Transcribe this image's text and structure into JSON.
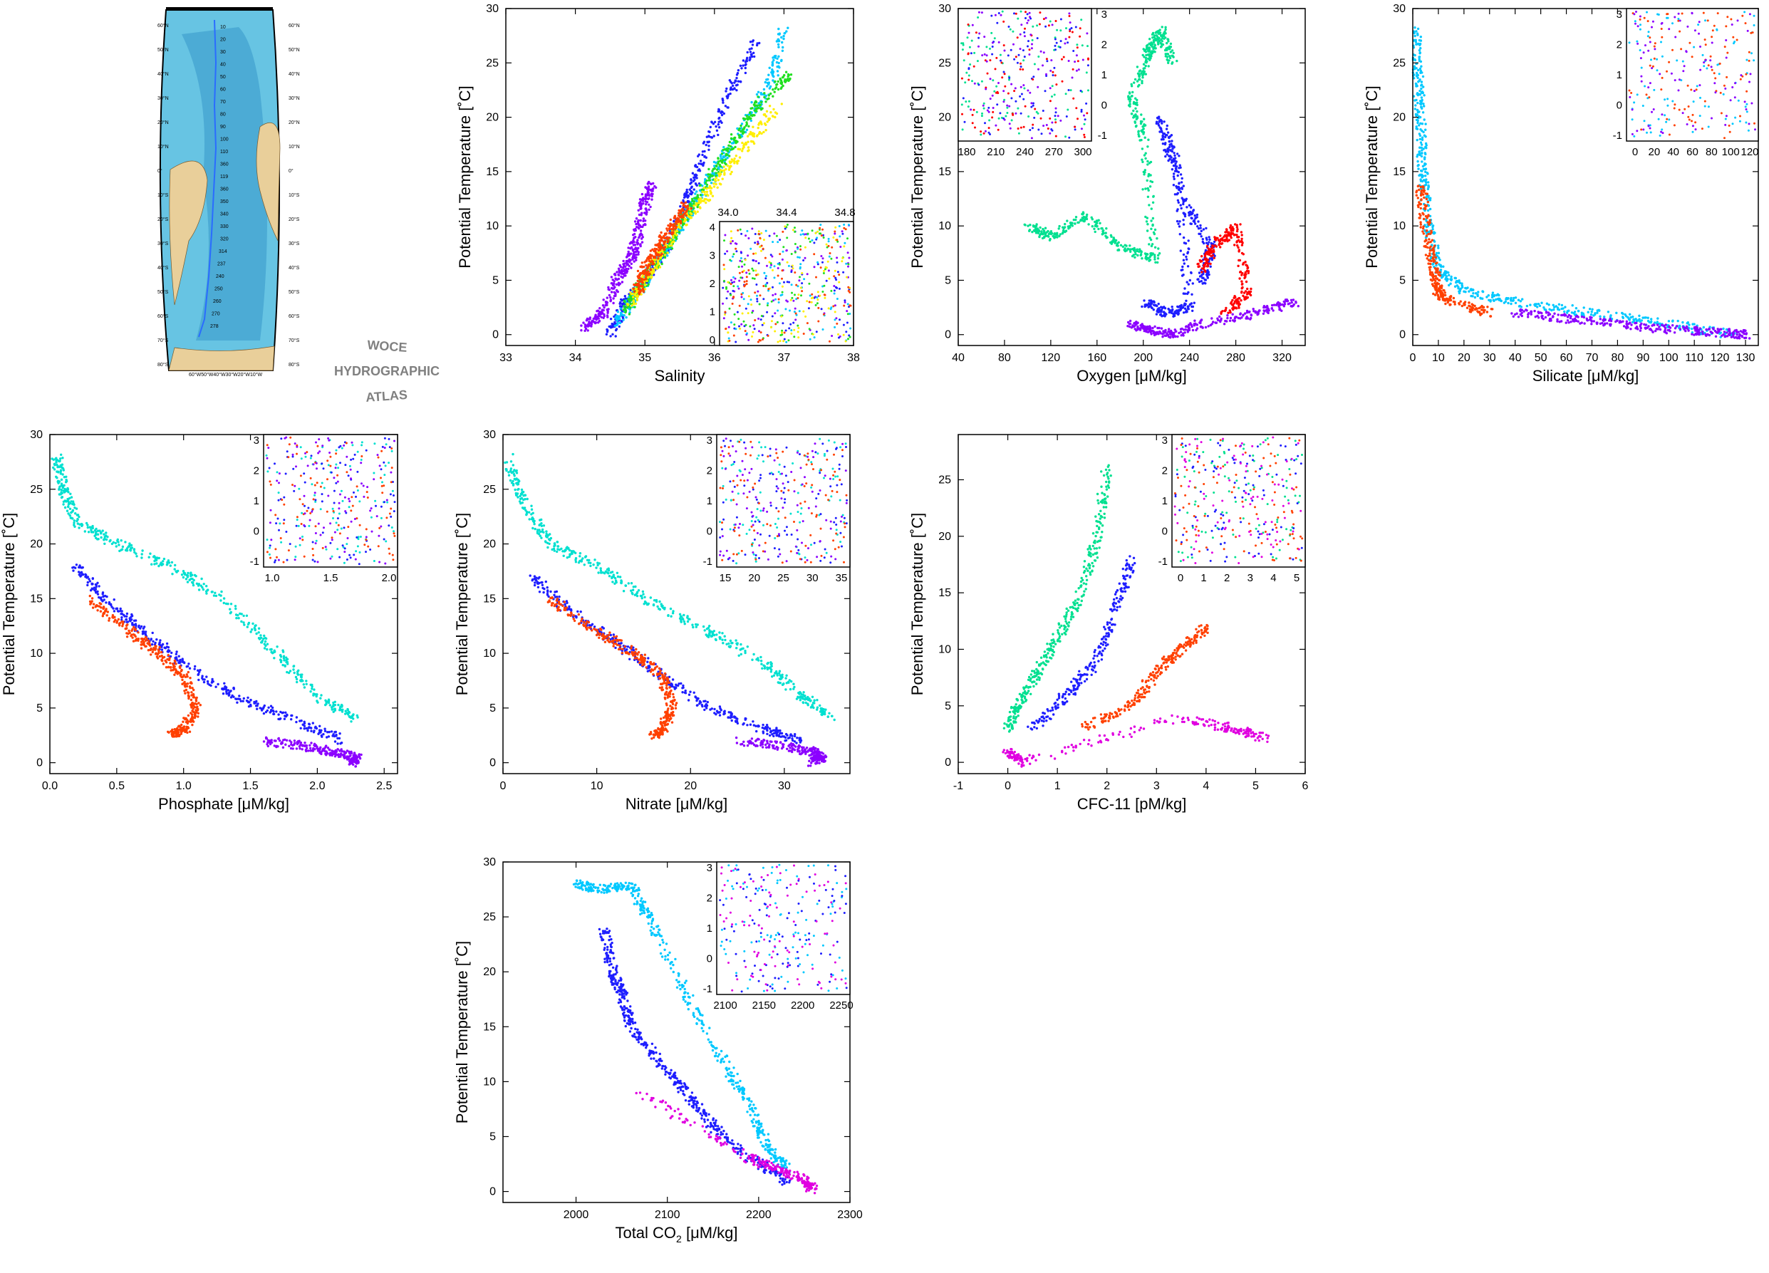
{
  "atlas": {
    "title_lines": [
      "WOCE",
      "HYDROGRAPHIC",
      "ATLAS"
    ],
    "lat_labels": [
      "60°N",
      "50°N",
      "40°N",
      "30°N",
      "20°N",
      "10°N",
      "0°",
      "10°S",
      "20°S",
      "30°S",
      "40°S",
      "50°S",
      "60°S",
      "70°S",
      "80°S"
    ],
    "lon_labels": "60°W50°W40°W30°W20°W10°W",
    "station_labels": [
      "10",
      "20",
      "30",
      "40",
      "50",
      "60",
      "70",
      "80",
      "90",
      "100",
      "110",
      "360",
      "119",
      "360",
      "350",
      "340",
      "330",
      "320",
      "314",
      "237",
      "240",
      "250",
      "260",
      "270",
      "278"
    ]
  },
  "colors": {
    "ocean": "#67c4e3",
    "ocean_deep": "#2d8fc4",
    "land": "#e9cf9a",
    "palette": [
      "#8b00ff",
      "#b000ff",
      "#e000e0",
      "#1e1eff",
      "#0050ff",
      "#0090ff",
      "#00c8ff",
      "#00e0d0",
      "#00e090",
      "#20e020",
      "#90ee00",
      "#ffee00",
      "#ffc000",
      "#ff8000",
      "#ff4000",
      "#ff0000"
    ]
  },
  "chart_data": [
    {
      "id": "salinity",
      "type": "line",
      "xlabel": "Salinity",
      "ylabel": "Potential Temperature [˚C]",
      "xlim": [
        33,
        38
      ],
      "ylim": [
        -1,
        30
      ],
      "xticks": [
        "33",
        "34",
        "35",
        "36",
        "37",
        "38"
      ],
      "yticks": [
        "0",
        "5",
        "10",
        "15",
        "20",
        "25",
        "30"
      ],
      "series": [
        {
          "color": "#8b00ff",
          "x": [
            34.1,
            34.4,
            34.6,
            34.8,
            34.9,
            35.0,
            35.1
          ],
          "y": [
            0.5,
            2,
            5,
            7,
            9,
            12,
            14
          ]
        },
        {
          "color": "#1e1eff",
          "x": [
            34.5,
            34.7,
            35.0,
            35.3,
            35.6,
            35.8,
            36.2,
            36.6
          ],
          "y": [
            0,
            3,
            5,
            8,
            12,
            16,
            22,
            27
          ]
        },
        {
          "color": "#00c8ff",
          "x": [
            34.6,
            34.9,
            35.2,
            35.5,
            35.8,
            36.2,
            36.8,
            37.0
          ],
          "y": [
            1,
            4,
            7,
            10,
            13,
            17,
            23,
            28
          ]
        },
        {
          "color": "#20e020",
          "x": [
            34.7,
            35.0,
            35.4,
            35.8,
            36.2,
            36.6,
            37.1
          ],
          "y": [
            2,
            5,
            9,
            13,
            17,
            21,
            24
          ]
        },
        {
          "color": "#ffee00",
          "x": [
            34.8,
            35.1,
            35.5,
            35.9,
            36.4,
            36.9
          ],
          "y": [
            3,
            6,
            10,
            13,
            17,
            21
          ]
        },
        {
          "color": "#ff4000",
          "x": [
            34.9,
            35.0,
            35.2,
            35.4,
            35.6
          ],
          "y": [
            4,
            6,
            8,
            10,
            12
          ]
        }
      ],
      "inset": {
        "xticks": [
          "34.0",
          "34.4",
          "34.8"
        ],
        "yticks": [
          "0",
          "1",
          "2",
          "3",
          "4"
        ]
      }
    },
    {
      "id": "oxygen",
      "type": "scatter",
      "xlabel": "Oxygen [μM/kg]",
      "ylabel": "Potential Temperature [˚C]",
      "xlim": [
        40,
        340
      ],
      "ylim": [
        -1,
        30
      ],
      "xticks": [
        "40",
        "80",
        "120",
        "160",
        "200",
        "240",
        "280",
        "320"
      ],
      "yticks": [
        "0",
        "5",
        "10",
        "15",
        "20",
        "25",
        "30"
      ],
      "series": [
        {
          "color": "#00e090",
          "x": [
            100,
            120,
            150,
            180,
            210,
            200,
            190,
            205,
            215,
            225
          ],
          "y": [
            10,
            9,
            11,
            8,
            7,
            18,
            22,
            26,
            28,
            25
          ]
        },
        {
          "color": "#1e1eff",
          "x": [
            200,
            220,
            240,
            230,
            215,
            235,
            260,
            250
          ],
          "y": [
            3,
            2,
            2.5,
            15,
            20,
            12,
            8,
            5
          ]
        },
        {
          "color": "#ff0000",
          "x": [
            250,
            260,
            280,
            290,
            270
          ],
          "y": [
            6,
            8,
            10,
            4,
            2
          ]
        },
        {
          "color": "#8b00ff",
          "x": [
            190,
            205,
            225,
            250,
            300,
            330
          ],
          "y": [
            1,
            0.5,
            0,
            1,
            2,
            3
          ]
        }
      ],
      "inset": {
        "xticks": [
          "180",
          "210",
          "240",
          "270",
          "300"
        ],
        "yticks": [
          "-1",
          "0",
          "1",
          "2",
          "3"
        ]
      }
    },
    {
      "id": "silicate",
      "type": "scatter",
      "xlabel": "Silicate [μM/kg]",
      "ylabel": "Potential Temperature [˚C]",
      "xlim": [
        0,
        135
      ],
      "ylim": [
        -1,
        30
      ],
      "xticks": [
        "0",
        "10",
        "20",
        "30",
        "40",
        "50",
        "60",
        "70",
        "80",
        "90",
        "100",
        "110",
        "120",
        "130"
      ],
      "yticks": [
        "0",
        "5",
        "10",
        "15",
        "20",
        "25",
        "30"
      ],
      "series": [
        {
          "color": "#00c8ff",
          "x": [
            1,
            2,
            3,
            4,
            6,
            10,
            20,
            40,
            70,
            100,
            125
          ],
          "y": [
            28,
            24,
            20,
            15,
            10,
            6,
            4,
            3,
            2,
            1,
            0
          ]
        },
        {
          "color": "#ff4000",
          "x": [
            3,
            5,
            8,
            10,
            15,
            30
          ],
          "y": [
            14,
            10,
            6,
            4,
            3,
            2
          ]
        },
        {
          "color": "#8b00ff",
          "x": [
            40,
            60,
            80,
            100,
            120,
            130
          ],
          "y": [
            2,
            1.5,
            1,
            0.5,
            0.2,
            0
          ]
        }
      ],
      "inset": {
        "xticks": [
          "0",
          "20",
          "40",
          "60",
          "80",
          "100",
          "120"
        ],
        "yticks": [
          "-1",
          "0",
          "1",
          "2",
          "3"
        ]
      }
    },
    {
      "id": "phosphate",
      "type": "scatter",
      "xlabel": "Phosphate [μM/kg]",
      "ylabel": "Potential Temperature [˚C]",
      "xlim": [
        0,
        2.6
      ],
      "ylim": [
        -1,
        30
      ],
      "xticks": [
        "0.0",
        "0.5",
        "1.0",
        "1.5",
        "2.0",
        "2.5"
      ],
      "yticks": [
        "0",
        "5",
        "10",
        "15",
        "20",
        "25",
        "30"
      ],
      "series": [
        {
          "color": "#00e0d0",
          "x": [
            0.05,
            0.1,
            0.2,
            0.5,
            0.9,
            1.3,
            1.7,
            2.0,
            2.3
          ],
          "y": [
            28,
            25,
            22,
            20,
            18,
            15,
            10,
            6,
            4
          ]
        },
        {
          "color": "#1e1eff",
          "x": [
            0.2,
            0.4,
            0.7,
            1.0,
            1.4,
            1.8,
            2.2
          ],
          "y": [
            18,
            15,
            12,
            9,
            6,
            4,
            2
          ]
        },
        {
          "color": "#ff4000",
          "x": [
            0.3,
            0.6,
            0.8,
            1.0,
            1.1,
            1.0,
            0.9
          ],
          "y": [
            15,
            12,
            10,
            8,
            5,
            3,
            2.5
          ]
        },
        {
          "color": "#8b00ff",
          "x": [
            1.6,
            1.9,
            2.1,
            2.3,
            2.25
          ],
          "y": [
            2,
            1.5,
            1,
            0.5,
            0
          ]
        }
      ],
      "inset": {
        "xticks": [
          "1.0",
          "1.5",
          "2.0"
        ],
        "yticks": [
          "-1",
          "0",
          "1",
          "2",
          "3"
        ]
      }
    },
    {
      "id": "nitrate",
      "type": "scatter",
      "xlabel": "Nitrate [μM/kg]",
      "ylabel": "Potential Temperature [˚C]",
      "xlim": [
        0,
        37
      ],
      "ylim": [
        -1,
        30
      ],
      "xticks": [
        "0",
        "10",
        "20",
        "30"
      ],
      "yticks": [
        "0",
        "5",
        "10",
        "15",
        "20",
        "25",
        "30"
      ],
      "series": [
        {
          "color": "#00e0d0",
          "x": [
            0.5,
            2,
            5,
            10,
            15,
            22,
            28,
            32,
            35
          ],
          "y": [
            28,
            24,
            20,
            18,
            15,
            12,
            9,
            6,
            4
          ]
        },
        {
          "color": "#1e1eff",
          "x": [
            3,
            7,
            12,
            17,
            22,
            28,
            32
          ],
          "y": [
            17,
            14,
            11,
            8,
            5,
            3,
            2
          ]
        },
        {
          "color": "#ff4000",
          "x": [
            5,
            10,
            14,
            17,
            18,
            17,
            16
          ],
          "y": [
            15,
            12,
            10,
            8,
            5,
            3,
            2.5
          ]
        },
        {
          "color": "#8b00ff",
          "x": [
            25,
            30,
            33,
            34,
            33
          ],
          "y": [
            2,
            1.5,
            1,
            0.5,
            0
          ]
        }
      ],
      "inset": {
        "xticks": [
          "15",
          "20",
          "25",
          "30",
          "35"
        ],
        "yticks": [
          "-1",
          "0",
          "1",
          "2",
          "3"
        ]
      }
    },
    {
      "id": "cfc11",
      "type": "scatter",
      "xlabel": "CFC-11 [pM/kg]",
      "ylabel": "Potential Temperature [˚C]",
      "xlim": [
        -1,
        6
      ],
      "ylim": [
        -1,
        29
      ],
      "xticks": [
        "-1",
        "0",
        "1",
        "2",
        "3",
        "4",
        "5",
        "6"
      ],
      "yticks": [
        "0",
        "5",
        "10",
        "15",
        "20",
        "25"
      ],
      "series": [
        {
          "color": "#00e090",
          "x": [
            0,
            0.2,
            0.6,
            1.0,
            1.5,
            1.8,
            2.0
          ],
          "y": [
            3,
            5,
            8,
            11,
            15,
            20,
            26
          ]
        },
        {
          "color": "#1e1eff",
          "x": [
            0.5,
            1.2,
            1.8,
            2.2,
            2.5
          ],
          "y": [
            3,
            6,
            9,
            14,
            18
          ]
        },
        {
          "color": "#ff4000",
          "x": [
            1.5,
            2.5,
            3.0,
            3.5,
            4.0
          ],
          "y": [
            3,
            5,
            8,
            10,
            12
          ]
        },
        {
          "color": "#e000e0",
          "x": [
            0,
            0.3,
            3.5,
            4.5,
            5.3
          ],
          "y": [
            1,
            0,
            4,
            3,
            2
          ]
        }
      ],
      "inset": {
        "xticks": [
          "0",
          "1",
          "2",
          "3",
          "4",
          "5"
        ],
        "yticks": [
          "-1",
          "0",
          "1",
          "2",
          "3"
        ]
      }
    },
    {
      "id": "tco2",
      "type": "scatter",
      "xlabel": "Total CO",
      "xlabel_sub": "2",
      "xlabel_unit": " [μM/kg]",
      "ylabel": "Potential Temperature [˚C]",
      "xlim": [
        1920,
        2300
      ],
      "ylim": [
        -1,
        30
      ],
      "xticks": [
        "2000",
        "2100",
        "2200",
        "2300"
      ],
      "yticks": [
        "0",
        "5",
        "10",
        "15",
        "20",
        "25",
        "30"
      ],
      "series": [
        {
          "color": "#00c8ff",
          "x": [
            2000,
            2030,
            2060,
            2080,
            2120,
            2160,
            2190,
            2210,
            2230
          ],
          "y": [
            28,
            27.5,
            27.8,
            25,
            18,
            12,
            8,
            4,
            2
          ]
        },
        {
          "color": "#1e1eff",
          "x": [
            2030,
            2040,
            2050,
            2060,
            2090,
            2120,
            2150,
            2190,
            2230
          ],
          "y": [
            24,
            20,
            18,
            15,
            12,
            9,
            6,
            3,
            1
          ]
        },
        {
          "color": "#e000e0",
          "x": [
            2070,
            2190,
            2220,
            2250,
            2260
          ],
          "y": [
            9,
            3,
            2,
            1,
            0
          ]
        }
      ],
      "inset": {
        "xticks": [
          "2100",
          "2150",
          "2200",
          "2250"
        ],
        "yticks": [
          "-1",
          "0",
          "1",
          "2",
          "3"
        ]
      }
    }
  ]
}
